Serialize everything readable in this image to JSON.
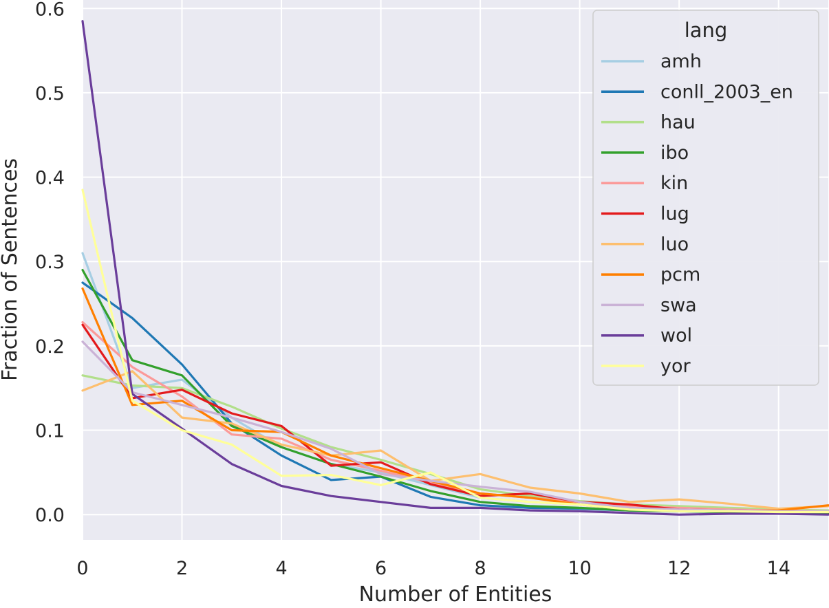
{
  "chart_data": {
    "type": "line",
    "xlabel": "Number of Entities",
    "ylabel": "Fraction of Sentences",
    "xlim": [
      0,
      15
    ],
    "ylim": [
      -0.03,
      0.61
    ],
    "xticks": [
      0,
      2,
      4,
      6,
      8,
      10,
      12,
      14
    ],
    "xtick_labels": [
      "0",
      "2",
      "4",
      "6",
      "8",
      "10",
      "12",
      "14"
    ],
    "yticks": [
      0.0,
      0.1,
      0.2,
      0.3,
      0.4,
      0.5,
      0.6
    ],
    "ytick_labels": [
      "0.0",
      "0.1",
      "0.2",
      "0.3",
      "0.4",
      "0.5",
      "0.6"
    ],
    "grid": true,
    "background": "#EAEAF2",
    "legend": {
      "title": "lang",
      "position": "top-right"
    },
    "x": [
      0,
      1,
      2,
      3,
      4,
      5,
      6,
      7,
      8,
      9,
      10,
      11,
      12,
      13,
      14,
      15
    ],
    "series": [
      {
        "name": "amh",
        "color": "#A6CEE3",
        "values": [
          0.31,
          0.15,
          0.16,
          0.115,
          0.08,
          0.06,
          0.05,
          0.035,
          0.02,
          0.015,
          0.012,
          0.008,
          0.005,
          0.004,
          0.003,
          0.005
        ]
      },
      {
        "name": "conll_2003_en",
        "color": "#1F78B4",
        "values": [
          0.275,
          0.233,
          0.178,
          0.108,
          0.07,
          0.041,
          0.045,
          0.021,
          0.011,
          0.008,
          0.007,
          0.005,
          0.004,
          0.003,
          0.003,
          0.002
        ]
      },
      {
        "name": "hau",
        "color": "#B2DF8A",
        "values": [
          0.165,
          0.153,
          0.15,
          0.128,
          0.102,
          0.08,
          0.065,
          0.048,
          0.03,
          0.022,
          0.016,
          0.012,
          0.01,
          0.008,
          0.006,
          0.005
        ]
      },
      {
        "name": "ibo",
        "color": "#33A02C",
        "values": [
          0.29,
          0.183,
          0.165,
          0.105,
          0.08,
          0.06,
          0.045,
          0.028,
          0.015,
          0.01,
          0.008,
          0.005,
          0.004,
          0.003,
          0.002,
          0.002
        ]
      },
      {
        "name": "kin",
        "color": "#FB9A99",
        "values": [
          0.228,
          0.175,
          0.14,
          0.095,
          0.09,
          0.065,
          0.052,
          0.038,
          0.025,
          0.02,
          0.015,
          0.01,
          0.008,
          0.006,
          0.005,
          0.004
        ]
      },
      {
        "name": "lug",
        "color": "#E31A1C",
        "values": [
          0.225,
          0.138,
          0.148,
          0.12,
          0.105,
          0.058,
          0.062,
          0.036,
          0.022,
          0.025,
          0.015,
          0.012,
          0.006,
          0.005,
          0.004,
          0.003
        ]
      },
      {
        "name": "luo",
        "color": "#FDBF6F",
        "values": [
          0.147,
          0.17,
          0.115,
          0.108,
          0.083,
          0.07,
          0.076,
          0.04,
          0.048,
          0.032,
          0.025,
          0.015,
          0.018,
          0.013,
          0.007,
          0.01
        ]
      },
      {
        "name": "pcm",
        "color": "#FF7F00",
        "values": [
          0.268,
          0.13,
          0.135,
          0.1,
          0.098,
          0.07,
          0.055,
          0.04,
          0.025,
          0.02,
          0.012,
          0.006,
          0.005,
          0.004,
          0.005,
          0.011
        ]
      },
      {
        "name": "swa",
        "color": "#CAB2D6",
        "values": [
          0.205,
          0.145,
          0.13,
          0.115,
          0.098,
          0.078,
          0.048,
          0.04,
          0.033,
          0.027,
          0.015,
          0.008,
          0.006,
          0.005,
          0.004,
          0.004
        ]
      },
      {
        "name": "wol",
        "color": "#6A3D9A",
        "values": [
          0.585,
          0.143,
          0.102,
          0.06,
          0.034,
          0.022,
          0.015,
          0.008,
          0.008,
          0.005,
          0.004,
          0.002,
          0.0,
          0.001,
          0.001,
          0.0
        ]
      },
      {
        "name": "yor",
        "color": "#FFFF99",
        "values": [
          0.385,
          0.135,
          0.1,
          0.083,
          0.046,
          0.047,
          0.035,
          0.05,
          0.02,
          0.015,
          0.012,
          0.006,
          0.004,
          0.004,
          0.003,
          0.003
        ]
      }
    ]
  }
}
